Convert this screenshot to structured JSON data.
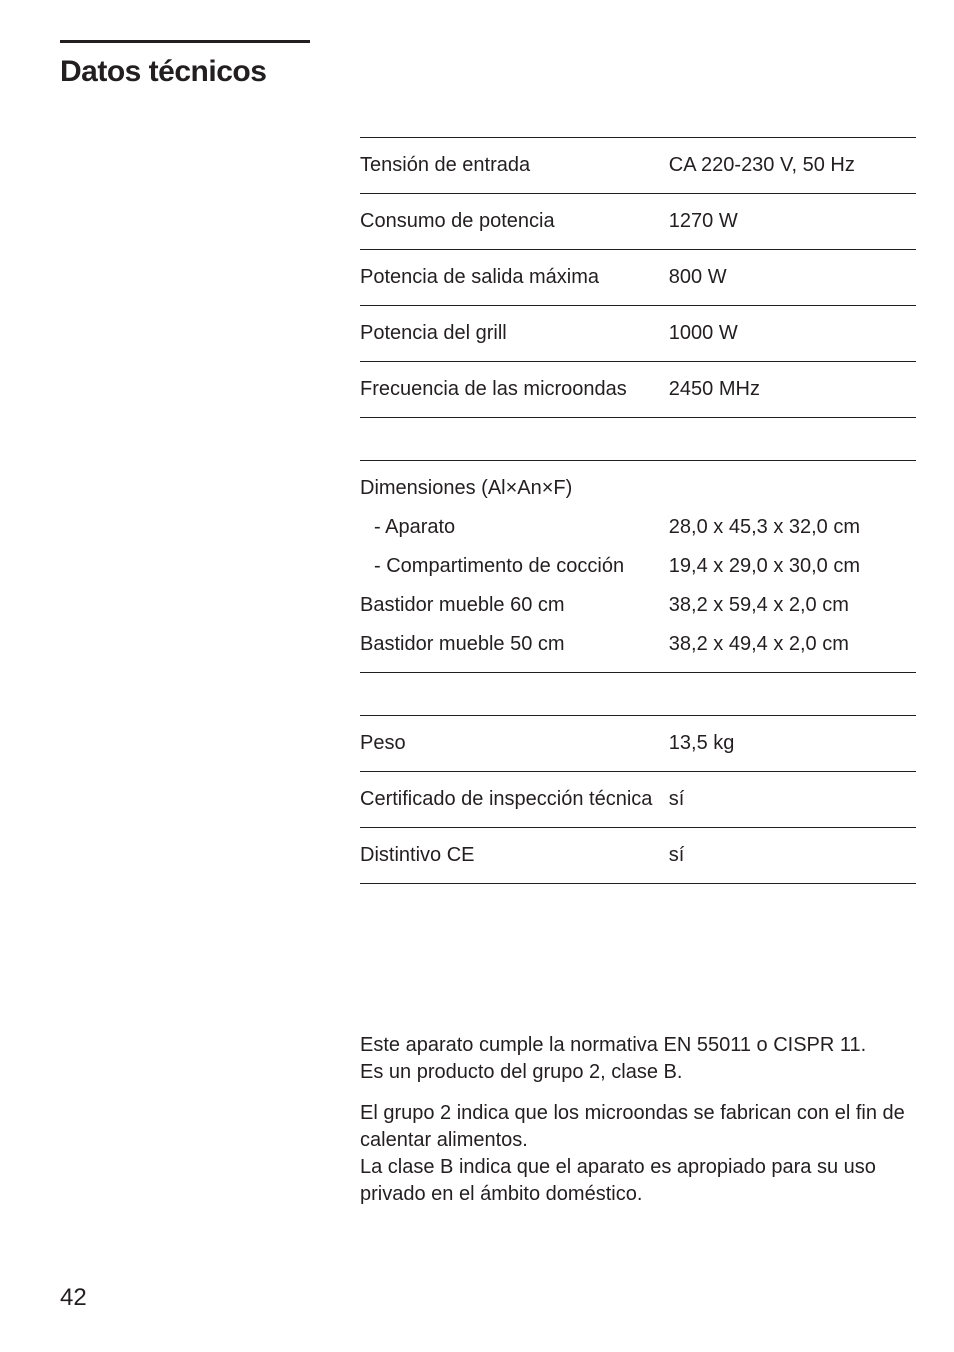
{
  "page": {
    "title": "Datos técnicos",
    "page_number": "42",
    "colors": {
      "text": "#231f20",
      "rule": "#231f20",
      "background": "#ffffff"
    },
    "typography": {
      "title_fontsize": 30,
      "table_fontsize": 20,
      "body_fontsize": 20
    }
  },
  "spec_block_1": {
    "rows": [
      {
        "label": "Tensión de entrada",
        "value": "CA 220-230 V, 50 Hz"
      },
      {
        "label": "Consumo de potencia",
        "value": "1270 W"
      },
      {
        "label": "Potencia de salida máxima",
        "value": "800 W"
      },
      {
        "label": "Potencia del grill",
        "value": "1000 W"
      },
      {
        "label": "Frecuencia de las microondas",
        "value": "2450 MHz"
      }
    ]
  },
  "spec_block_2": {
    "header": "Dimensiones (Al×An×F)",
    "rows": [
      {
        "label": "- Aparato",
        "value": "28,0 x 45,3 x 32,0 cm"
      },
      {
        "label": "- Compartimento de cocción",
        "value": "19,4 x 29,0 x 30,0 cm"
      },
      {
        "label": "Bastidor mueble 60 cm",
        "value": "38,2 x 59,4 x 2,0 cm"
      },
      {
        "label": "Bastidor mueble 50 cm",
        "value": "38,2 x 49,4 x 2,0 cm"
      }
    ]
  },
  "spec_block_3": {
    "rows": [
      {
        "label": "Peso",
        "value": "13,5 kg"
      },
      {
        "label": "Certificado de inspección técnica",
        "value": "sí"
      },
      {
        "label": "Distintivo CE",
        "value": "sí"
      }
    ]
  },
  "body": {
    "p1": "Este aparato cumple la normativa EN 55011 o CISPR 11.\nEs un producto del grupo 2, clase B.",
    "p2": "El grupo 2 indica que los microondas se fabrican con el fin de calentar alimentos.\nLa clase B indica que el aparato es apropiado para su uso privado en el ámbito doméstico."
  }
}
